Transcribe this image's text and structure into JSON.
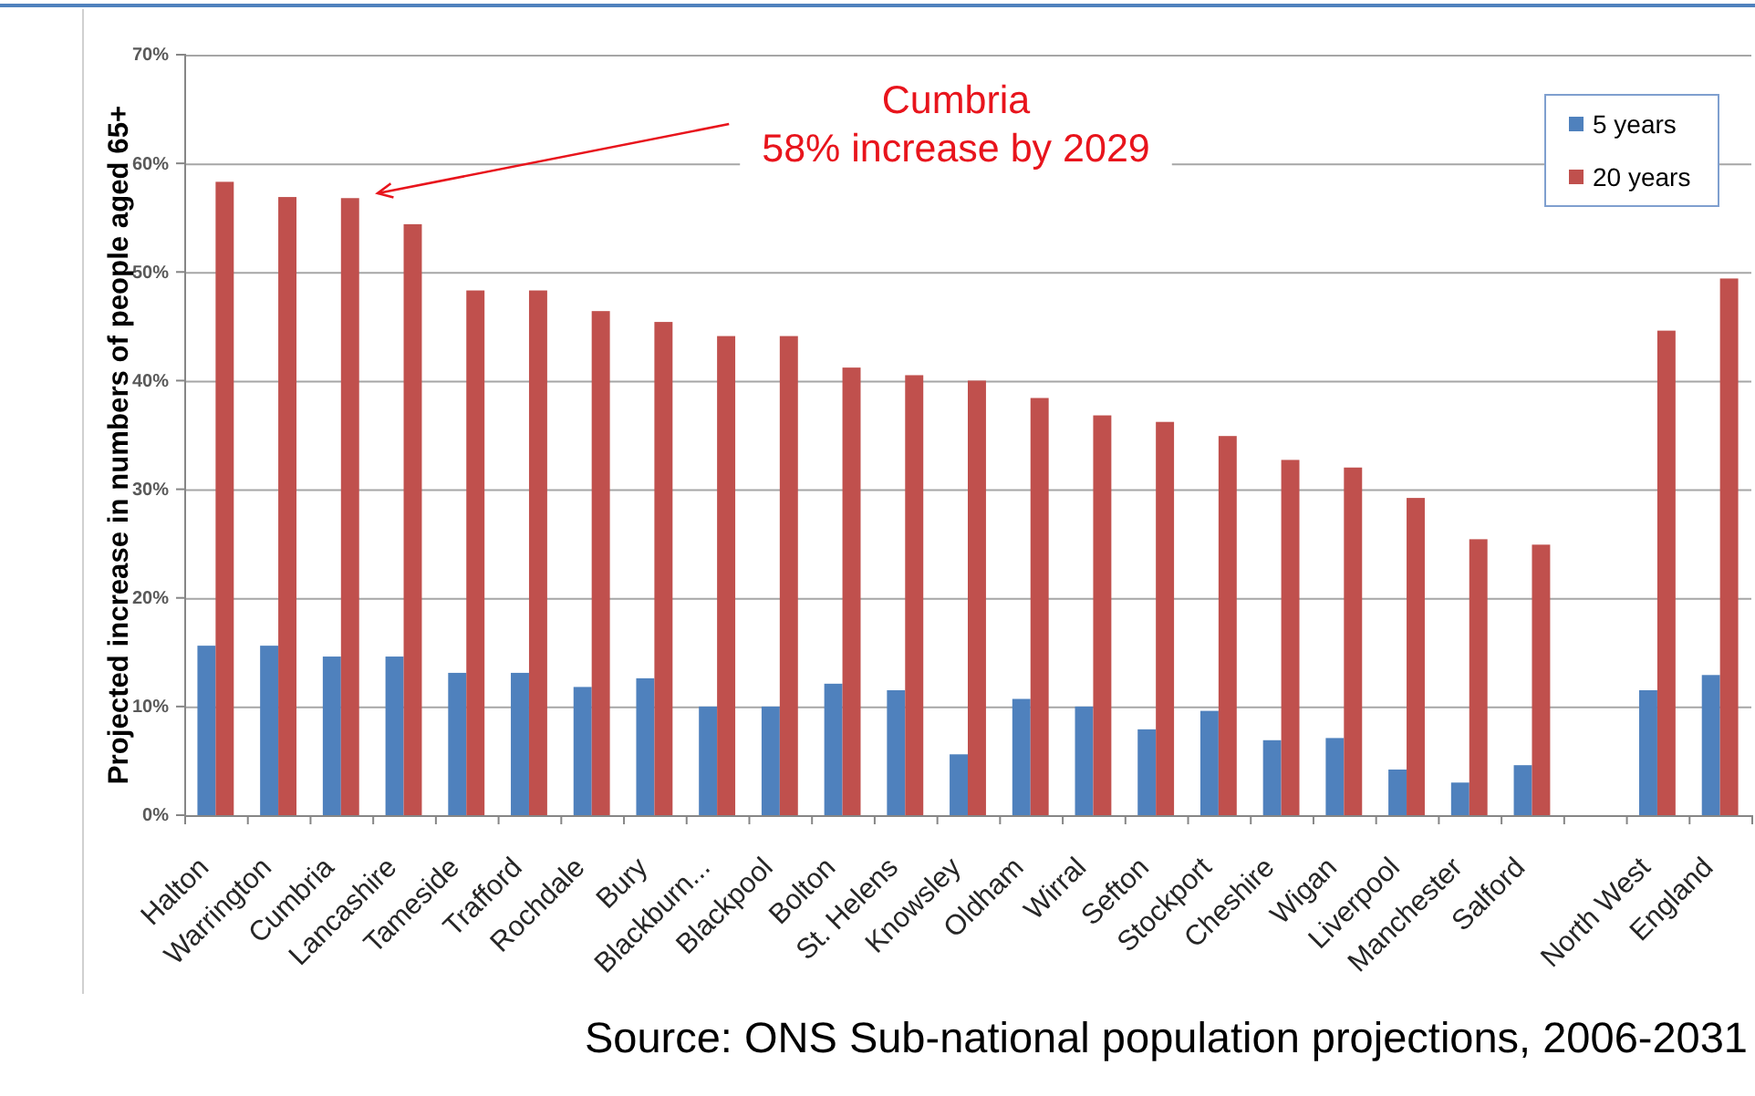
{
  "chart_data": {
    "type": "bar",
    "categories": [
      "Halton",
      "Warrington",
      "Cumbria",
      "Lancashire",
      "Tameside",
      "Trafford",
      "Rochdale",
      "Bury",
      "Blackburn...",
      "Blackpool",
      "Bolton",
      "St. Helens",
      "Knowsley",
      "Oldham",
      "Wirral",
      "Sefton",
      "Stockport",
      "Cheshire",
      "Wigan",
      "Liverpool",
      "Manchester",
      "Salford",
      null,
      "North West",
      "England"
    ],
    "series": [
      {
        "name": "5 years",
        "color": "#4f81bd",
        "values": [
          15.6,
          15.6,
          14.6,
          14.6,
          13.1,
          13.1,
          11.8,
          12.6,
          10.0,
          10.0,
          12.1,
          11.5,
          5.6,
          10.7,
          10.0,
          7.9,
          9.6,
          6.9,
          7.1,
          4.2,
          3.0,
          4.6,
          null,
          11.5,
          12.9
        ]
      },
      {
        "name": "20 years",
        "color": "#c0504d",
        "values": [
          58.3,
          56.9,
          56.8,
          54.4,
          48.3,
          48.3,
          46.4,
          45.4,
          44.1,
          44.1,
          41.2,
          40.5,
          40.0,
          38.4,
          36.8,
          36.2,
          34.9,
          32.7,
          32.0,
          29.2,
          25.4,
          24.9,
          null,
          44.6,
          49.4
        ]
      }
    ],
    "ylabel": "Projected increase in numbers of people aged 65+",
    "ylim": [
      0,
      70
    ],
    "yticks": [
      {
        "value": 0,
        "label": "0%"
      },
      {
        "value": 10,
        "label": "10%"
      },
      {
        "value": 20,
        "label": "20%"
      },
      {
        "value": 30,
        "label": "30%"
      },
      {
        "value": 40,
        "label": "40%"
      },
      {
        "value": 50,
        "label": "50%"
      },
      {
        "value": 60,
        "label": "60%"
      },
      {
        "value": 70,
        "label": "70%"
      }
    ],
    "grid": "y",
    "legend": "top right",
    "annotations": [
      "Cumbria\n58% increase by 2029",
      "Source: ONS Sub-national population projections, 2006-2031"
    ]
  }
}
